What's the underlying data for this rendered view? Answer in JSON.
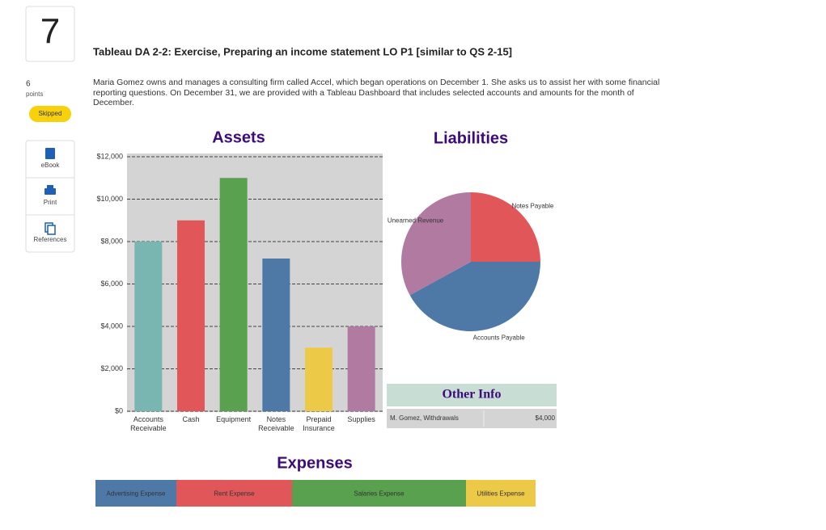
{
  "question": {
    "number": "7",
    "points": "6",
    "points_label": "points",
    "status": "Skipped",
    "title": "Tableau DA 2-2: Exercise, Preparing an income statement LO P1 [similar to QS 2-15]",
    "text": "Maria Gomez owns and manages a consulting firm called Accel, which began operations on December 1. She asks us to assist her with some financial reporting questions. On December 31, we are provided with a Tableau Dashboard that includes selected accounts and amounts for the month of December."
  },
  "tools": [
    "eBook",
    "Print",
    "References"
  ],
  "chart_data": [
    {
      "type": "bar",
      "title": "Assets",
      "categories": [
        "Accounts Receivable",
        "Cash",
        "Equipment",
        "Notes Receivable",
        "Prepaid Insurance",
        "Supplies"
      ],
      "values": [
        8000,
        9000,
        11000,
        7200,
        3000,
        4000
      ],
      "colors": [
        "#79b6b2",
        "#e15759",
        "#59a14f",
        "#4e79a7",
        "#edc948",
        "#b07aa1"
      ],
      "ylim": [
        0,
        12000
      ],
      "yticks": [
        {
          "value": 0,
          "label": "$0"
        },
        {
          "value": 2000,
          "label": "$2,000"
        },
        {
          "value": 4000,
          "label": "$4,000"
        },
        {
          "value": 6000,
          "label": "$6,000"
        },
        {
          "value": 8000,
          "label": "$8,000"
        },
        {
          "value": 10000,
          "label": "$10,000"
        },
        {
          "value": 12000,
          "label": "$12,000"
        }
      ],
      "grid": true
    },
    {
      "type": "pie",
      "title": "Liabilities",
      "categories": [
        "Notes Payable",
        "Accounts Payable",
        "Unearned Revenue"
      ],
      "values": [
        25,
        42,
        33
      ],
      "colors": [
        "#e15759",
        "#4e79a7",
        "#b07aa1"
      ]
    },
    {
      "type": "stacked-bar",
      "title": "Expenses",
      "series": [
        {
          "name": "Advertising Expense",
          "color": "#4e79a7",
          "values": [
            1000
          ]
        },
        {
          "name": "Rent Expense",
          "color": "#e15759",
          "values": [
            1430
          ]
        },
        {
          "name": "Salaries Expense",
          "color": "#59a14f",
          "values": [
            2150
          ]
        },
        {
          "name": "Utilities Expense",
          "color": "#edc948",
          "values": [
            860
          ]
        }
      ]
    }
  ],
  "other_info": {
    "title": "Other Info",
    "rows": [
      [
        "M. Gomez, Withdrawals",
        "$4,000"
      ]
    ]
  }
}
